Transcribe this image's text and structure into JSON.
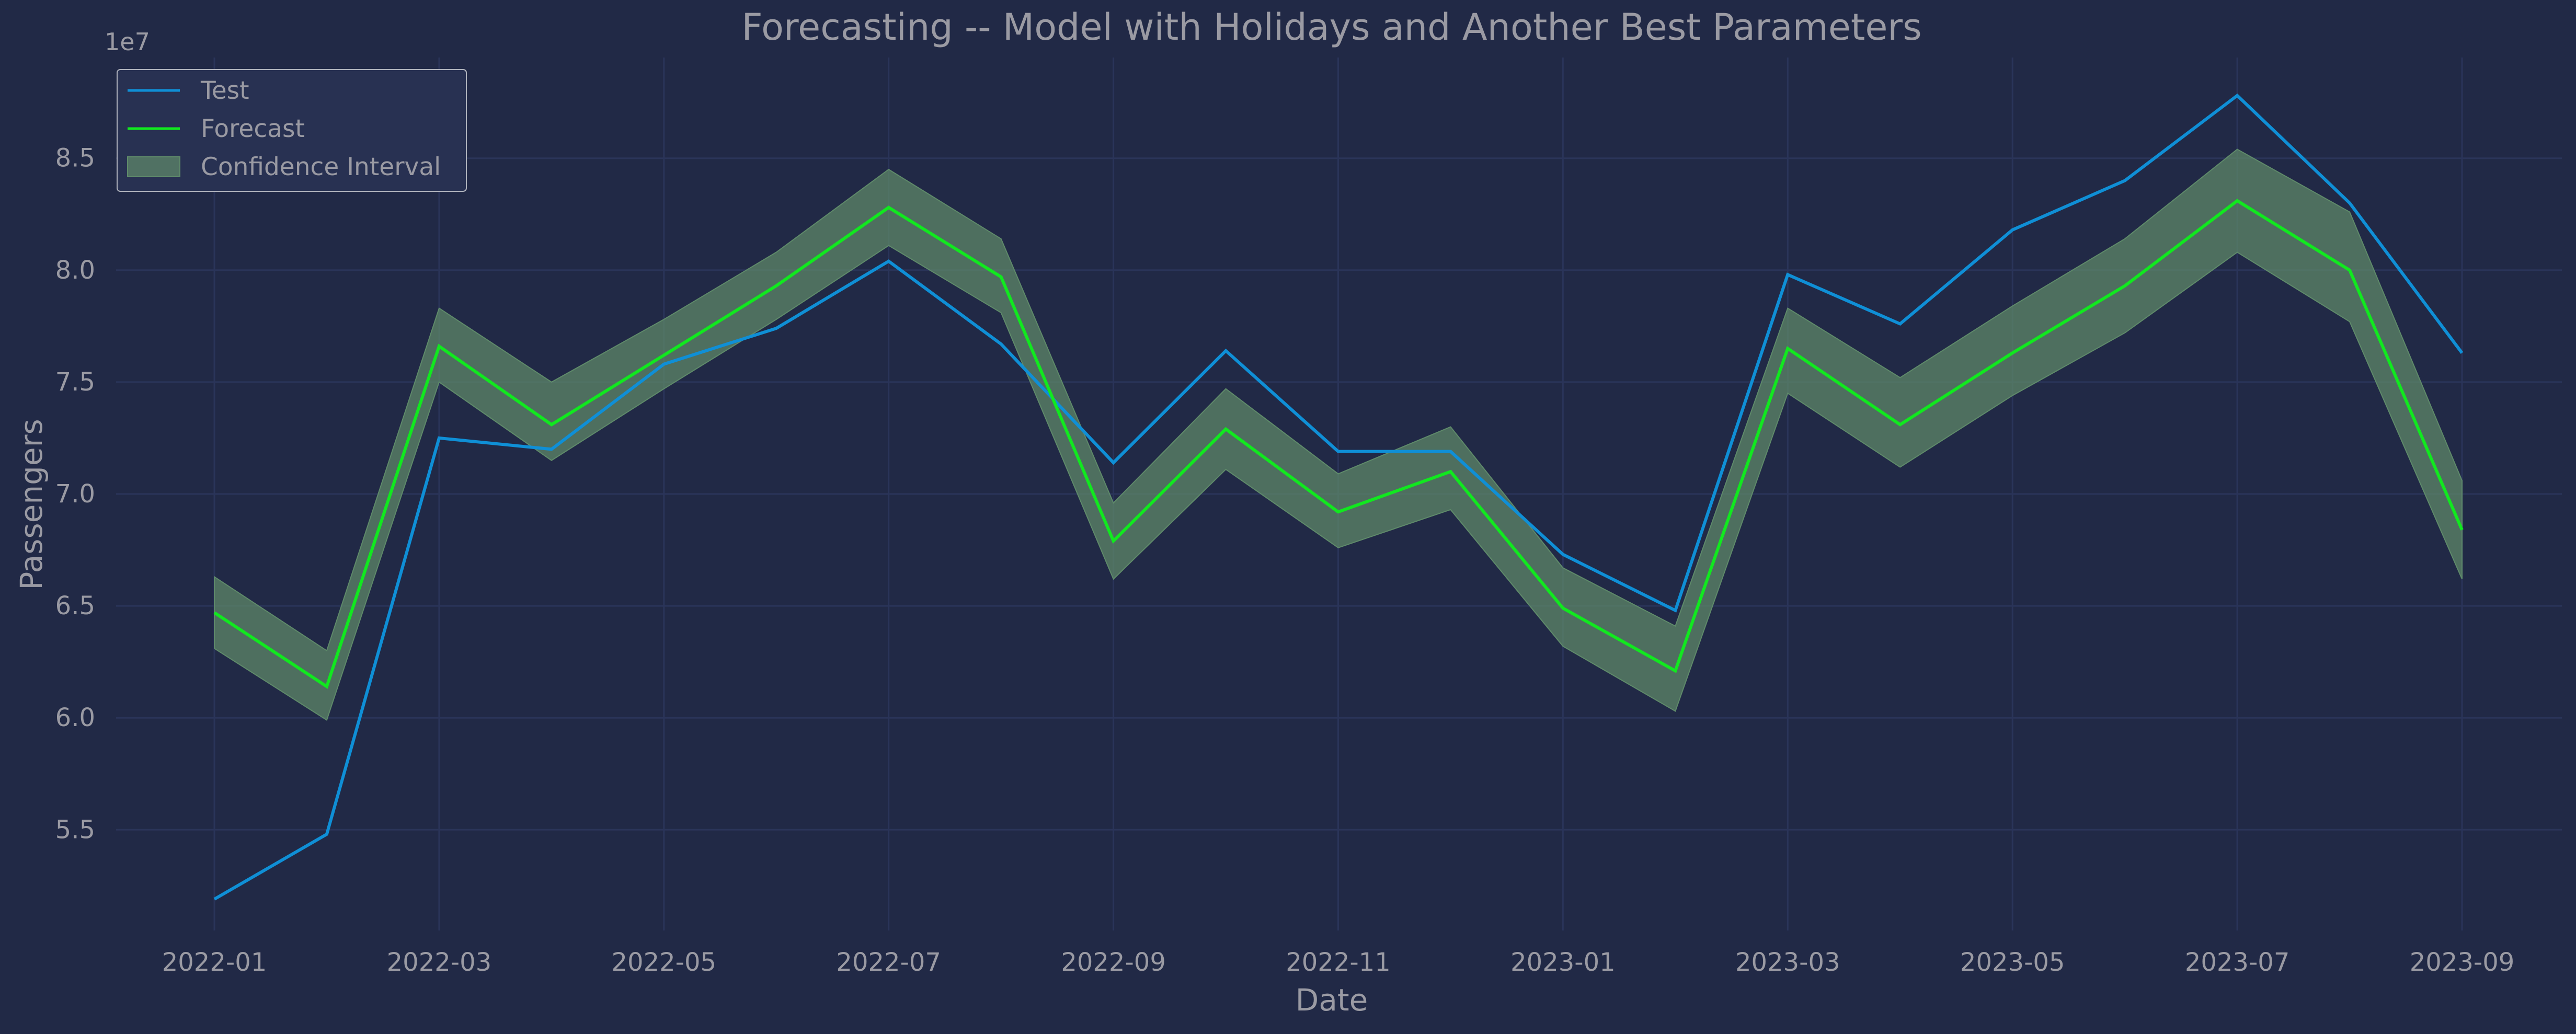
{
  "chart_data": {
    "type": "line",
    "title": "Forecasting -- Model with Holidays and Another Best Parameters",
    "xlabel": "Date",
    "ylabel": "Passengers",
    "y_scale_note": "1e7",
    "x_ticks": [
      "2022-01",
      "2022-03",
      "2022-05",
      "2022-07",
      "2022-09",
      "2022-11",
      "2023-01",
      "2023-03",
      "2023-05",
      "2023-07",
      "2023-09"
    ],
    "y_ticks": [
      "5.5",
      "6.0",
      "6.5",
      "7.0",
      "7.5",
      "8.0",
      "8.5"
    ],
    "y_tick_values": [
      5.5,
      6.0,
      6.5,
      7.0,
      7.5,
      8.0,
      8.5
    ],
    "ylim": [
      5.05,
      8.95
    ],
    "x": [
      "2022-01",
      "2022-02",
      "2022-03",
      "2022-04",
      "2022-05",
      "2022-06",
      "2022-07",
      "2022-08",
      "2022-09",
      "2022-10",
      "2022-11",
      "2022-12",
      "2023-01",
      "2023-02",
      "2023-03",
      "2023-04",
      "2023-05",
      "2023-06",
      "2023-07",
      "2023-08",
      "2023-09"
    ],
    "series": [
      {
        "name": "Test",
        "color": "#0f8fd6",
        "values": [
          5.19,
          5.48,
          7.25,
          7.2,
          7.58,
          7.74,
          8.04,
          7.67,
          7.14,
          7.64,
          7.19,
          7.19,
          6.73,
          6.48,
          7.98,
          7.76,
          8.18,
          8.4,
          8.78,
          8.3,
          7.63
        ]
      },
      {
        "name": "Forecast",
        "color": "#11e81f",
        "values": [
          6.47,
          6.14,
          7.66,
          7.31,
          7.62,
          7.93,
          8.28,
          7.97,
          6.79,
          7.29,
          6.92,
          7.1,
          6.49,
          6.21,
          7.65,
          7.31,
          7.63,
          7.93,
          8.31,
          8.0,
          6.84
        ]
      }
    ],
    "confidence_interval": {
      "name": "Confidence Interval",
      "color": "#5f8a6a",
      "lower": [
        6.31,
        5.99,
        7.5,
        7.15,
        7.47,
        7.78,
        8.11,
        7.81,
        6.62,
        7.11,
        6.76,
        6.93,
        6.32,
        6.03,
        7.45,
        7.12,
        7.44,
        7.72,
        8.08,
        7.77,
        6.62
      ],
      "upper": [
        6.63,
        6.3,
        7.83,
        7.5,
        7.78,
        8.08,
        8.45,
        8.14,
        6.96,
        7.47,
        7.09,
        7.3,
        6.67,
        6.41,
        7.83,
        7.52,
        7.84,
        8.14,
        8.54,
        8.26,
        7.06
      ]
    },
    "legend_position": "top-left",
    "grid": true
  }
}
